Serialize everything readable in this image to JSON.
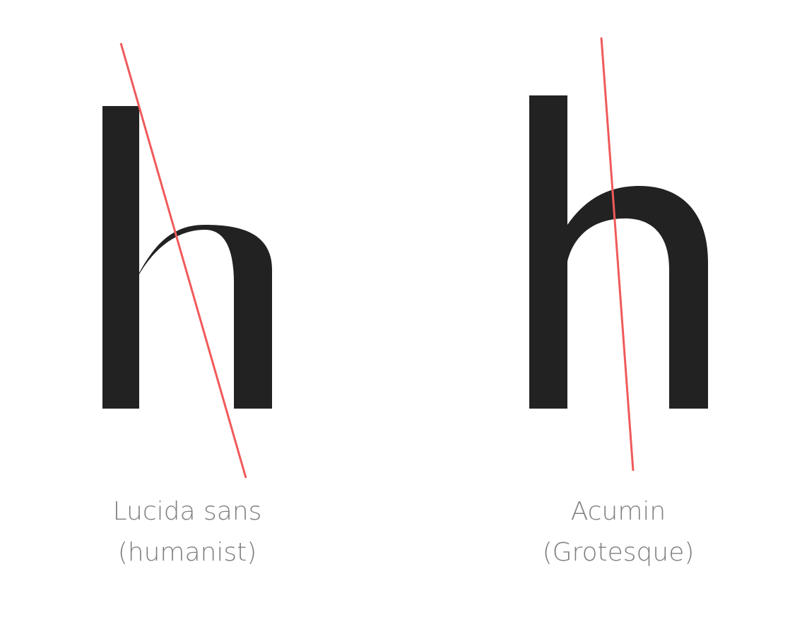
{
  "colors": {
    "glyph": "#222222",
    "axis_line": "#f05a5a",
    "caption": "#7f7f7f",
    "background": "#ffffff"
  },
  "specimens": [
    {
      "glyph": "h",
      "font_name": "Lucida sans",
      "classification": "(humanist)",
      "stress_axis": "diagonal"
    },
    {
      "glyph": "h",
      "font_name": "Acumin",
      "classification": "(Grotesque)",
      "stress_axis": "near-vertical"
    }
  ]
}
